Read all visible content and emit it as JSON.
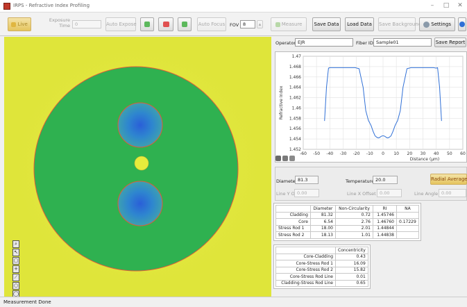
{
  "window": {
    "title": "IRPS - Refractive Index Profiling"
  },
  "toolbar": {
    "live": "Live",
    "exposure_label": "Exposure Time",
    "exposure_value": "0",
    "auto_expose": "Auto Expose",
    "auto_focus": "Auto Focus",
    "fov_label": "FOV",
    "fov_value": "8",
    "measure": "Measure",
    "save_data": "Save Data",
    "load_data": "Load Data",
    "save_background": "Save Background",
    "settings": "Settings"
  },
  "header_fields": {
    "operator_label": "Operator",
    "operator_value": "EJR",
    "fiber_id_label": "Fiber ID",
    "fiber_id_value": "Sample01",
    "save_report": "Save Report"
  },
  "chart_data": {
    "type": "line",
    "title": "",
    "xlabel": "Distance (µm)",
    "ylabel": "Refractive Index",
    "xlim": [
      -60,
      60
    ],
    "ylim": [
      1.452,
      1.47
    ],
    "xticks": [
      -60,
      -50,
      -40,
      -30,
      -20,
      -10,
      0,
      10,
      20,
      30,
      40,
      50,
      60
    ],
    "yticks": [
      "1.452",
      "1.454",
      "1.456",
      "1.458",
      "1.46",
      "1.462",
      "1.464",
      "1.466",
      "1.468",
      "1.47"
    ],
    "grid": true,
    "series": [
      {
        "color": "#2f6fd6",
        "x": [
          -44,
          -42.5,
          -41,
          -40,
          -38,
          -35,
          -31,
          -27,
          -24,
          -21,
          -18,
          -15,
          -13,
          -11,
          -9,
          -7.5,
          -6,
          -4.5,
          -3.5,
          -2.5,
          -1.5,
          -0.5,
          0.5,
          1.5,
          2.5,
          3.5,
          4.5,
          6,
          7.5,
          9,
          11,
          13,
          15,
          18,
          21,
          24,
          27,
          31,
          35,
          38,
          40,
          41,
          42.5,
          44
        ],
        "y": [
          1.4575,
          1.464,
          1.4677,
          1.4678,
          1.4678,
          1.4678,
          1.4678,
          1.4678,
          1.4678,
          1.4678,
          1.4676,
          1.464,
          1.4595,
          1.4576,
          1.4566,
          1.4555,
          1.4546,
          1.4543,
          1.4542,
          1.4543,
          1.4545,
          1.4546,
          1.4546,
          1.4545,
          1.4543,
          1.4542,
          1.4543,
          1.4546,
          1.4555,
          1.4566,
          1.4576,
          1.4595,
          1.464,
          1.4676,
          1.4678,
          1.4678,
          1.4678,
          1.4678,
          1.4678,
          1.4678,
          1.4677,
          1.4678,
          1.464,
          1.4575
        ]
      }
    ]
  },
  "params": {
    "diameter_label": "Diameter",
    "diameter_value": "81.3",
    "temperature_label": "Temperature",
    "temperature_value": "20.0",
    "radial_average": "Radial Average",
    "line_y_offset_label": "Line Y Offset",
    "line_y_offset_value": "0.00",
    "line_x_offset_label": "Line X Offset",
    "line_x_offset_value": "0.00",
    "line_angle_label": "Line Angle",
    "line_angle_value": "0.00"
  },
  "results_table": {
    "headers": [
      "",
      "Diameter",
      "Non-Circularity",
      "RI",
      "NA"
    ],
    "rows": [
      [
        "Cladding",
        "81.32",
        "0.72",
        "1.45746",
        ""
      ],
      [
        "Core",
        "6.54",
        "2.76",
        "1.46760",
        "0.17229"
      ],
      [
        "Stress Rod 1",
        "18.00",
        "2.01",
        "1.44844",
        ""
      ],
      [
        "Stress Rod 2",
        "18.13",
        "1.01",
        "1.44838",
        ""
      ]
    ]
  },
  "concentricity_table": {
    "headers": [
      "",
      "Concentricity"
    ],
    "rows": [
      [
        "Core-Cladding",
        "0.43"
      ],
      [
        "Core-Stress Rod 1",
        "16.09"
      ],
      [
        "Core-Stress Rod 2",
        "15.82"
      ],
      [
        "Core-Stress Rod Line",
        "0.01"
      ],
      [
        "Cladding-Stress Rod Line",
        "0.65"
      ]
    ]
  },
  "status": {
    "text": "Measurement Done"
  },
  "colors": {
    "background": "#dfe53a",
    "cladding": "#2fb150",
    "core": "#e6ec3c",
    "stress_rod": "#2f8fd0",
    "profile_line": "#2f6fd6"
  }
}
